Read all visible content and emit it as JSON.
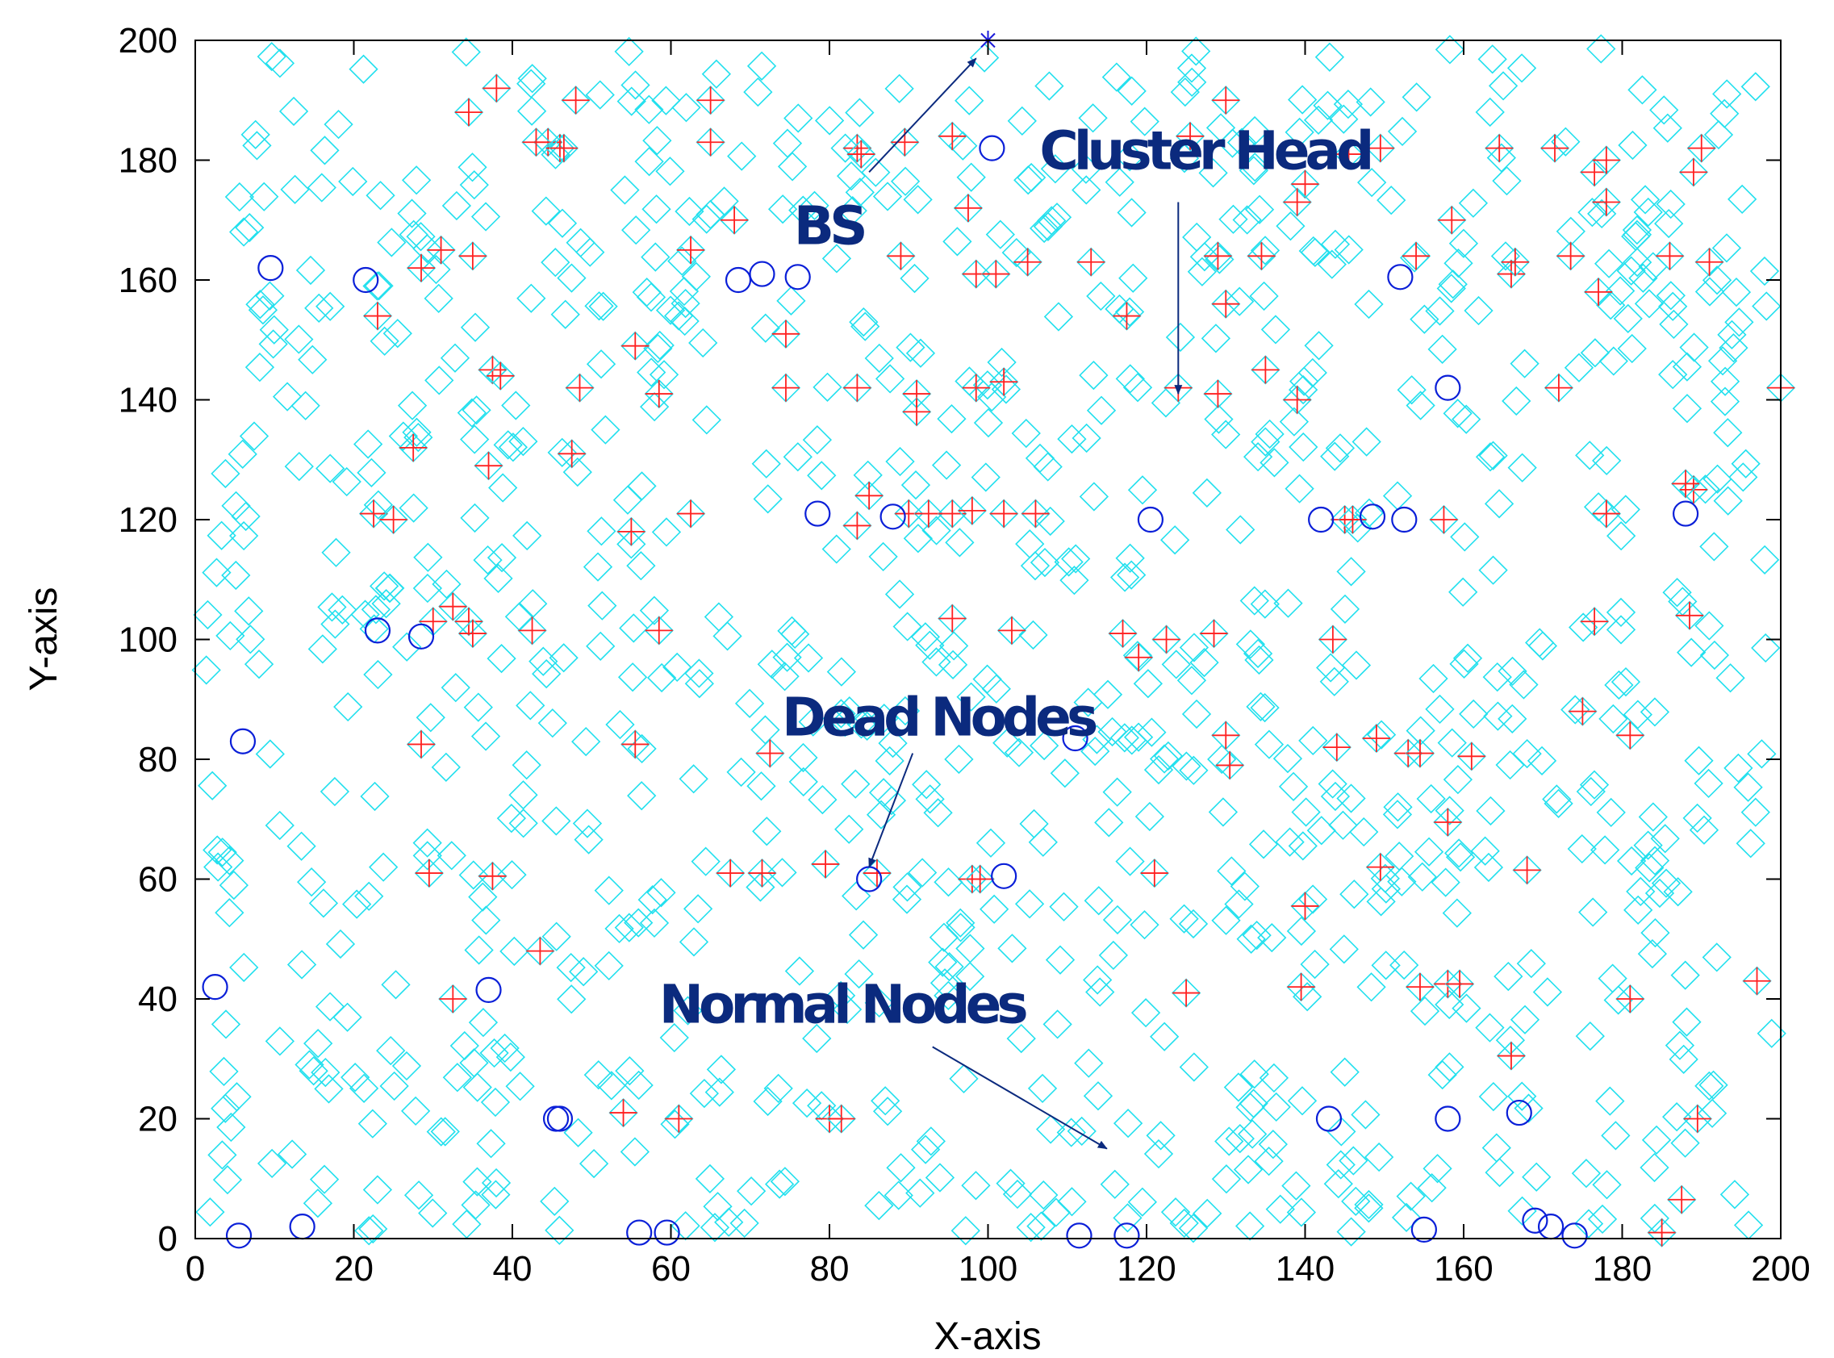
{
  "chart_data": {
    "type": "scatter",
    "title": "",
    "xlabel": "X-axis",
    "ylabel": "Y-axis",
    "xlim": [
      0,
      200
    ],
    "ylim": [
      0,
      200
    ],
    "xticks": [
      0,
      20,
      40,
      60,
      80,
      100,
      120,
      140,
      160,
      180,
      200
    ],
    "yticks": [
      0,
      20,
      40,
      60,
      80,
      100,
      120,
      140,
      160,
      180,
      200
    ],
    "grid": false,
    "legend": "none",
    "colors": {
      "normal": "#22e0ee",
      "cluster_head": "#ff2020",
      "dead": "#0a1fd8",
      "bs": "#1a1ad8",
      "annotation": "#0b2a7e",
      "arrow": "#0b2a7e"
    },
    "base_station": {
      "x": 100,
      "y": 200
    },
    "dead_nodes": [
      [
        9.5,
        162
      ],
      [
        21.5,
        160
      ],
      [
        23,
        101.5
      ],
      [
        28.5,
        100.5
      ],
      [
        6,
        83
      ],
      [
        2.5,
        42
      ],
      [
        5.5,
        0.5
      ],
      [
        13.5,
        2
      ],
      [
        37,
        41.5
      ],
      [
        45.5,
        20
      ],
      [
        46,
        20
      ],
      [
        56,
        1
      ],
      [
        59.5,
        1
      ],
      [
        68.5,
        160
      ],
      [
        71.5,
        161
      ],
      [
        76,
        160.5
      ],
      [
        78.5,
        121
      ],
      [
        88,
        120.5
      ],
      [
        100.5,
        182
      ],
      [
        111,
        83.5
      ],
      [
        85,
        60
      ],
      [
        102,
        60.5
      ],
      [
        111.5,
        0.5
      ],
      [
        117.5,
        0.5
      ],
      [
        120.5,
        120
      ],
      [
        142,
        120
      ],
      [
        148.5,
        120.5
      ],
      [
        152.5,
        120
      ],
      [
        152,
        160.5
      ],
      [
        158,
        142
      ],
      [
        143,
        20
      ],
      [
        158,
        20
      ],
      [
        167,
        21
      ],
      [
        169,
        3
      ],
      [
        171,
        2
      ],
      [
        174,
        0.5
      ],
      [
        155,
        1.5
      ],
      [
        188,
        121
      ]
    ],
    "cluster_heads": [
      [
        34.5,
        188
      ],
      [
        38,
        192
      ],
      [
        44.5,
        183
      ],
      [
        46,
        182
      ],
      [
        46.5,
        182
      ],
      [
        48,
        190
      ],
      [
        65,
        190
      ],
      [
        65,
        183
      ],
      [
        68,
        170
      ],
      [
        83.5,
        182
      ],
      [
        84,
        181
      ],
      [
        89.5,
        183
      ],
      [
        95.5,
        184
      ],
      [
        97.5,
        172
      ],
      [
        89,
        164
      ],
      [
        98.5,
        161
      ],
      [
        101,
        161
      ],
      [
        105,
        163
      ],
      [
        113,
        163
      ],
      [
        117.5,
        154
      ],
      [
        124,
        142
      ],
      [
        129,
        164
      ],
      [
        130,
        156
      ],
      [
        134.5,
        164
      ],
      [
        129,
        141
      ],
      [
        135,
        145
      ],
      [
        139,
        140
      ],
      [
        140,
        176
      ],
      [
        139,
        173
      ],
      [
        145.5,
        181
      ],
      [
        149.5,
        182
      ],
      [
        154,
        164
      ],
      [
        158.5,
        170
      ],
      [
        164.5,
        182
      ],
      [
        166,
        161
      ],
      [
        166.5,
        163
      ],
      [
        171.5,
        182
      ],
      [
        172,
        142
      ],
      [
        173.5,
        164
      ],
      [
        176.5,
        178
      ],
      [
        178,
        180
      ],
      [
        178,
        173
      ],
      [
        177,
        158
      ],
      [
        186,
        164
      ],
      [
        189,
        178
      ],
      [
        190,
        182
      ],
      [
        191,
        163
      ],
      [
        200,
        142
      ],
      [
        22.5,
        121
      ],
      [
        23,
        154
      ],
      [
        25,
        120
      ],
      [
        27.5,
        132
      ],
      [
        28.5,
        162
      ],
      [
        31,
        165
      ],
      [
        35,
        164
      ],
      [
        37.5,
        145
      ],
      [
        38.5,
        144
      ],
      [
        37,
        129
      ],
      [
        43,
        183
      ],
      [
        47.5,
        131
      ],
      [
        48.5,
        142
      ],
      [
        55.5,
        149
      ],
      [
        58.5,
        141
      ],
      [
        62.5,
        121
      ],
      [
        62.5,
        165
      ],
      [
        74.5,
        151
      ],
      [
        74.5,
        142
      ],
      [
        83.5,
        142
      ],
      [
        91,
        141
      ],
      [
        91,
        138
      ],
      [
        85,
        124
      ],
      [
        83.5,
        119
      ],
      [
        90,
        121
      ],
      [
        92.5,
        121
      ],
      [
        95.5,
        121
      ],
      [
        98,
        121.5
      ],
      [
        98.5,
        142
      ],
      [
        102,
        121
      ],
      [
        102,
        143
      ],
      [
        106,
        121
      ],
      [
        55,
        118
      ],
      [
        125.5,
        184
      ],
      [
        130,
        190
      ],
      [
        30,
        103
      ],
      [
        32.5,
        105.5
      ],
      [
        34.5,
        103
      ],
      [
        35,
        101
      ],
      [
        42.5,
        101.5
      ],
      [
        58.5,
        101.5
      ],
      [
        95.5,
        103.5
      ],
      [
        103,
        101.5
      ],
      [
        117,
        101
      ],
      [
        119,
        97
      ],
      [
        122.5,
        100
      ],
      [
        128.5,
        101
      ],
      [
        143.5,
        100
      ],
      [
        176.5,
        103
      ],
      [
        188.5,
        104
      ],
      [
        189,
        125
      ],
      [
        188,
        126
      ],
      [
        145,
        120
      ],
      [
        146,
        120
      ],
      [
        157.5,
        120
      ],
      [
        28.5,
        82.5
      ],
      [
        29.5,
        61
      ],
      [
        32.5,
        40
      ],
      [
        37.5,
        60.5
      ],
      [
        43.5,
        48
      ],
      [
        54,
        21
      ],
      [
        55.5,
        82.5
      ],
      [
        61,
        20
      ],
      [
        67.5,
        61
      ],
      [
        71.5,
        61
      ],
      [
        72.5,
        81
      ],
      [
        79.5,
        62.5
      ],
      [
        80,
        20
      ],
      [
        81.5,
        20
      ],
      [
        86,
        61
      ],
      [
        98,
        60
      ],
      [
        99,
        60
      ],
      [
        121,
        61
      ],
      [
        125,
        41
      ],
      [
        130,
        84
      ],
      [
        130.5,
        79
      ],
      [
        139.5,
        42
      ],
      [
        140,
        55.5
      ],
      [
        144,
        82
      ],
      [
        149,
        83.5
      ],
      [
        149.5,
        62
      ],
      [
        153,
        81
      ],
      [
        154.5,
        81
      ],
      [
        154.5,
        42
      ],
      [
        158,
        69.5
      ],
      [
        158,
        42.5
      ],
      [
        159.5,
        42.5
      ],
      [
        161,
        80.5
      ],
      [
        166,
        30.5
      ],
      [
        168,
        61.5
      ],
      [
        175,
        88
      ],
      [
        181,
        84
      ],
      [
        181,
        40
      ],
      [
        187.5,
        6.5
      ],
      [
        185,
        1
      ],
      [
        189.5,
        20
      ],
      [
        197,
        43
      ],
      [
        178,
        121
      ]
    ],
    "annotations": [
      {
        "label": "BS",
        "text_x": 75.5,
        "text_y": 166,
        "arrow_from": [
          85,
          178
        ],
        "arrow_to": [
          98.5,
          197
        ]
      },
      {
        "label": "Cluster Head",
        "text_x": 106.5,
        "text_y": 178.5,
        "arrow_from": [
          124,
          173
        ],
        "arrow_to": [
          124,
          141
        ]
      },
      {
        "label": "Dead Nodes",
        "text_x": 74,
        "text_y": 84,
        "arrow_from": [
          90.5,
          81
        ],
        "arrow_to": [
          85,
          62
        ]
      },
      {
        "label": "Normal Nodes",
        "text_x": 58.5,
        "text_y": 36,
        "arrow_from": [
          93,
          32
        ],
        "arrow_to": [
          115,
          15
        ]
      }
    ]
  }
}
